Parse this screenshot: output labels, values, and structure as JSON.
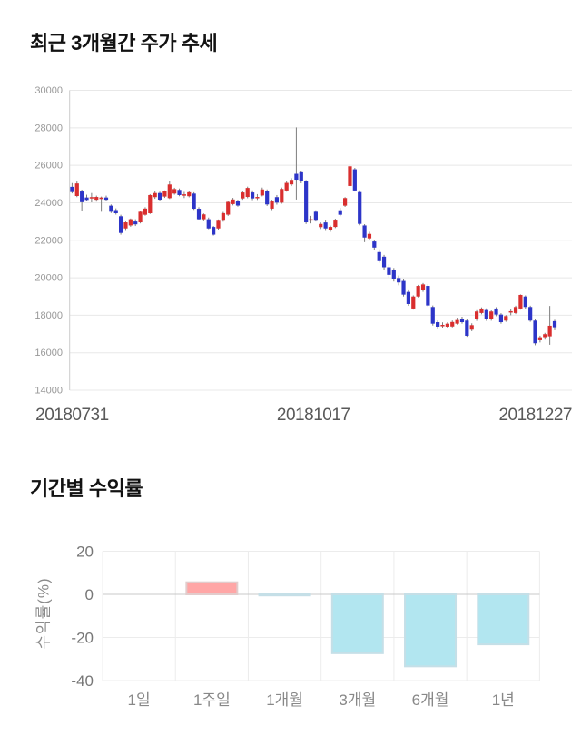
{
  "page": {
    "background": "#ffffff"
  },
  "chart_data": [
    {
      "type": "candlestick",
      "title": "최근 3개월간 주가 추세",
      "ylim": [
        14000,
        30000
      ],
      "y_ticks": [
        30000,
        28000,
        26000,
        24000,
        22000,
        20000,
        18000,
        16000,
        14000
      ],
      "x_tick_labels": [
        "20180731",
        "20181017",
        "20181227"
      ],
      "grid": true,
      "legend": "none",
      "colors": {
        "up": "#d92e2e",
        "down": "#2d35c8",
        "wick": "#7d7d7d",
        "grid": "#e8e8e8",
        "axis": "#cccccc",
        "tick_text": "#999999",
        "date_text": "#595959"
      },
      "candles_ohlc": [
        [
          24850,
          25050,
          24500,
          24570
        ],
        [
          24360,
          25130,
          24300,
          25030
        ],
        [
          24600,
          24700,
          23540,
          24030
        ],
        [
          24280,
          24430,
          24100,
          24150
        ],
        [
          24260,
          24520,
          24020,
          24300
        ],
        [
          24160,
          24380,
          24060,
          24310
        ],
        [
          24200,
          24330,
          23520,
          24280
        ],
        [
          24280,
          24380,
          24120,
          24160
        ],
        [
          23845,
          23910,
          23450,
          23520
        ],
        [
          23610,
          23700,
          23370,
          23440
        ],
        [
          23280,
          23360,
          22300,
          22390
        ],
        [
          22630,
          23000,
          22500,
          22955
        ],
        [
          22790,
          23160,
          22720,
          23120
        ],
        [
          23000,
          23120,
          22760,
          22850
        ],
        [
          22955,
          23560,
          22900,
          23520
        ],
        [
          23360,
          23760,
          23310,
          23690
        ],
        [
          23440,
          24460,
          23400,
          24410
        ],
        [
          24300,
          24610,
          24210,
          24520
        ],
        [
          24520,
          24590,
          24090,
          24165
        ],
        [
          24330,
          24660,
          24260,
          24620
        ],
        [
          24245,
          25135,
          24200,
          24975
        ],
        [
          24490,
          24800,
          24430,
          24730
        ],
        [
          24685,
          24760,
          24350,
          24410
        ],
        [
          24400,
          24580,
          24250,
          24450
        ],
        [
          24350,
          24620,
          24290,
          24560
        ],
        [
          24490,
          24560,
          23620,
          23680
        ],
        [
          23680,
          23760,
          23060,
          23120
        ],
        [
          23120,
          23430,
          23010,
          23380
        ],
        [
          23120,
          23210,
          22590,
          22630
        ],
        [
          22710,
          22760,
          22250,
          22300
        ],
        [
          22630,
          23110,
          22560,
          23040
        ],
        [
          23040,
          23510,
          22990,
          23445
        ],
        [
          23365,
          24110,
          23300,
          24045
        ],
        [
          23930,
          24260,
          23860,
          24175
        ],
        [
          24090,
          24160,
          23790,
          23850
        ],
        [
          24230,
          24610,
          24160,
          24550
        ],
        [
          24310,
          24860,
          24240,
          24790
        ],
        [
          24550,
          24660,
          24140,
          24230
        ],
        [
          24300,
          24460,
          24150,
          24310
        ],
        [
          24390,
          24810,
          24340,
          24710
        ],
        [
          24630,
          24710,
          23830,
          23910
        ],
        [
          23685,
          24160,
          23610,
          24085
        ],
        [
          24300,
          24410,
          23900,
          24005
        ],
        [
          24005,
          24810,
          23950,
          24735
        ],
        [
          24655,
          25160,
          24590,
          25060
        ],
        [
          24980,
          25310,
          24890,
          25220
        ],
        [
          25545,
          28020,
          24170,
          25230
        ],
        [
          25625,
          25710,
          25040,
          25140
        ],
        [
          25140,
          25210,
          22870,
          22955
        ],
        [
          23100,
          23300,
          22900,
          23120
        ],
        [
          23520,
          23600,
          23000,
          23040
        ],
        [
          22700,
          22950,
          22600,
          22870
        ],
        [
          22950,
          23050,
          22500,
          22630
        ],
        [
          22550,
          22780,
          22450,
          22710
        ],
        [
          22710,
          23150,
          22650,
          23050
        ],
        [
          23600,
          23720,
          23280,
          23360
        ],
        [
          23845,
          24300,
          23780,
          24250
        ],
        [
          24895,
          26060,
          24840,
          25945
        ],
        [
          25785,
          25860,
          24600,
          24655
        ],
        [
          24570,
          24660,
          22800,
          22875
        ],
        [
          22790,
          22860,
          21900,
          22145
        ],
        [
          22100,
          22450,
          22000,
          22340
        ],
        [
          21935,
          22010,
          21500,
          21610
        ],
        [
          21370,
          21520,
          20800,
          20885
        ],
        [
          21125,
          21220,
          20400,
          20560
        ],
        [
          20560,
          20720,
          20000,
          20155
        ],
        [
          20395,
          20520,
          19800,
          19910
        ],
        [
          19985,
          20120,
          19600,
          19750
        ],
        [
          19830,
          19920,
          19000,
          19100
        ],
        [
          19245,
          19330,
          18500,
          18600
        ],
        [
          18360,
          19060,
          18300,
          19000
        ],
        [
          19000,
          19620,
          18950,
          19565
        ],
        [
          19325,
          19720,
          19250,
          19645
        ],
        [
          19565,
          19660,
          18450,
          18520
        ],
        [
          18440,
          18520,
          17450,
          17550
        ],
        [
          17630,
          17720,
          17250,
          17390
        ],
        [
          17450,
          17620,
          17300,
          17485
        ],
        [
          17390,
          17620,
          17310,
          17550
        ],
        [
          17400,
          17720,
          17350,
          17640
        ],
        [
          17550,
          17870,
          17500,
          17745
        ],
        [
          17825,
          17920,
          17550,
          17630
        ],
        [
          17715,
          17820,
          16850,
          16905
        ],
        [
          17230,
          17570,
          17150,
          17470
        ],
        [
          17790,
          18270,
          17700,
          18200
        ],
        [
          18120,
          18420,
          18050,
          18360
        ],
        [
          18280,
          18370,
          17700,
          17790
        ],
        [
          17790,
          18260,
          17710,
          18200
        ],
        [
          18360,
          18430,
          17950,
          18035
        ],
        [
          18035,
          18110,
          17550,
          17630
        ],
        [
          17715,
          18010,
          17650,
          17955
        ],
        [
          18150,
          18310,
          18000,
          18215
        ],
        [
          18120,
          18510,
          18060,
          18440
        ],
        [
          18360,
          19110,
          18300,
          19085
        ],
        [
          19000,
          19060,
          18350,
          18440
        ],
        [
          18440,
          18510,
          17650,
          17715
        ],
        [
          17715,
          17810,
          16400,
          16505
        ],
        [
          16665,
          16910,
          16550,
          16825
        ],
        [
          16830,
          17060,
          16700,
          16990
        ],
        [
          16875,
          18495,
          16425,
          17440
        ],
        [
          17685,
          17760,
          17200,
          17360
        ]
      ]
    },
    {
      "type": "bar",
      "title": "기간별 수익률",
      "ylabel": "수익률(%)",
      "categories": [
        "1일",
        "1주일",
        "1개월",
        "3개월",
        "6개월",
        "1년"
      ],
      "values": [
        0,
        5.6,
        -0.5,
        -27.3,
        -33.4,
        -23.2
      ],
      "ylim": [
        -40,
        20
      ],
      "y_ticks": [
        20,
        0,
        -20,
        -40
      ],
      "grid": true,
      "legend": "none",
      "colors": {
        "positive": "#ffa6a6",
        "positive_border": "#e2cccc",
        "negative": "#b2e6f0",
        "negative_border": "#c5dfe7",
        "grid": "#ececec",
        "zero_line": "#c8c8c8",
        "tick_text": "#777777",
        "category_text": "#888888",
        "ylabel_text": "#8a8a8a"
      }
    }
  ]
}
